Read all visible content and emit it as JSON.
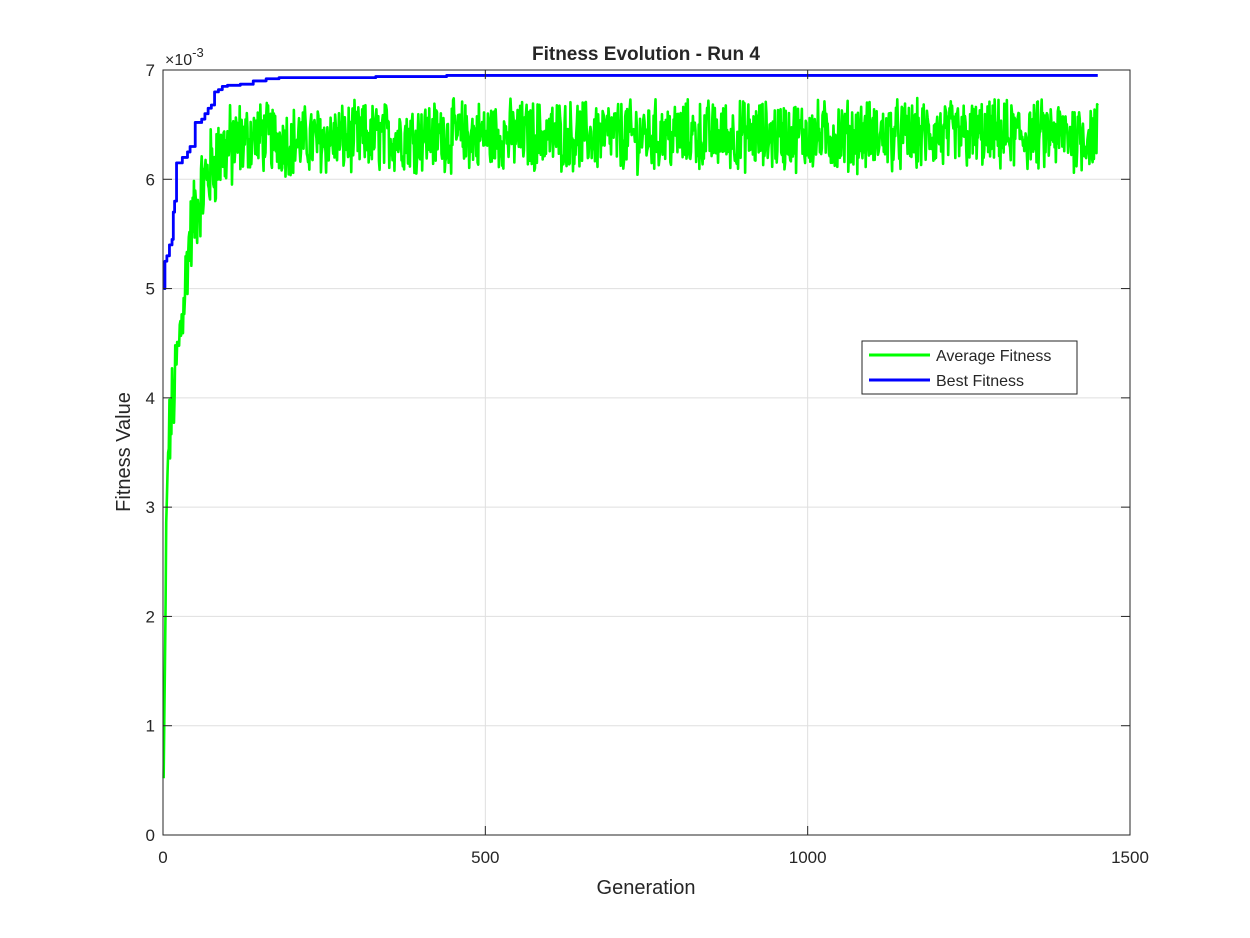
{
  "chart_data": {
    "type": "line",
    "title": "Fitness Evolution - Run 4",
    "xlabel": "Generation",
    "ylabel": "Fitness Value",
    "y_exponent_label": "×10",
    "y_exponent_power": "-3",
    "xlim": [
      0,
      1500
    ],
    "ylim": [
      0,
      0.007
    ],
    "xticks": [
      0,
      500,
      1000,
      1500
    ],
    "xtick_labels": [
      "0",
      "500",
      "1000",
      "1500"
    ],
    "yticks": [
      0,
      0.001,
      0.002,
      0.003,
      0.004,
      0.005,
      0.006,
      0.007
    ],
    "ytick_labels": [
      "0",
      "1",
      "2",
      "3",
      "4",
      "5",
      "6",
      "7"
    ],
    "grid": true,
    "legend_position": "right",
    "generations": 1450,
    "series": [
      {
        "name": "Average Fitness",
        "color": "#00ff00",
        "key_points": [
          [
            1,
            0.0005
          ],
          [
            3,
            0.0015
          ],
          [
            5,
            0.0028
          ],
          [
            8,
            0.0035
          ],
          [
            12,
            0.0038
          ],
          [
            18,
            0.0041
          ],
          [
            25,
            0.0045
          ],
          [
            32,
            0.0049
          ],
          [
            40,
            0.0054
          ],
          [
            50,
            0.0057
          ],
          [
            60,
            0.0059
          ],
          [
            75,
            0.0061
          ],
          [
            90,
            0.00625
          ],
          [
            110,
            0.0063
          ],
          [
            140,
            0.0064
          ],
          [
            200,
            0.00635
          ],
          [
            400,
            0.0064
          ],
          [
            800,
            0.0064
          ],
          [
            1200,
            0.0064
          ],
          [
            1450,
            0.0064
          ]
        ],
        "steady_state_mean": 0.0064,
        "steady_state_min": 0.00575,
        "steady_state_max": 0.00688
      },
      {
        "name": "Best Fitness",
        "color": "#0000ff",
        "values": [
          [
            1,
            0.005
          ],
          [
            3,
            0.00525
          ],
          [
            6,
            0.0053
          ],
          [
            10,
            0.0054
          ],
          [
            14,
            0.00545
          ],
          [
            16,
            0.0057
          ],
          [
            18,
            0.0058
          ],
          [
            20,
            0.0058
          ],
          [
            21,
            0.00615
          ],
          [
            30,
            0.0062
          ],
          [
            35,
            0.0062
          ],
          [
            38,
            0.00625
          ],
          [
            42,
            0.0063
          ],
          [
            48,
            0.0063
          ],
          [
            50,
            0.00652
          ],
          [
            60,
            0.00655
          ],
          [
            65,
            0.0066
          ],
          [
            70,
            0.00665
          ],
          [
            75,
            0.00668
          ],
          [
            80,
            0.0068
          ],
          [
            86,
            0.00682
          ],
          [
            92,
            0.00685
          ],
          [
            100,
            0.00686
          ],
          [
            120,
            0.00687
          ],
          [
            140,
            0.0069
          ],
          [
            160,
            0.00692
          ],
          [
            180,
            0.00693
          ],
          [
            240,
            0.00693
          ],
          [
            330,
            0.00694
          ],
          [
            440,
            0.00695
          ],
          [
            1450,
            0.00695
          ]
        ]
      }
    ]
  }
}
